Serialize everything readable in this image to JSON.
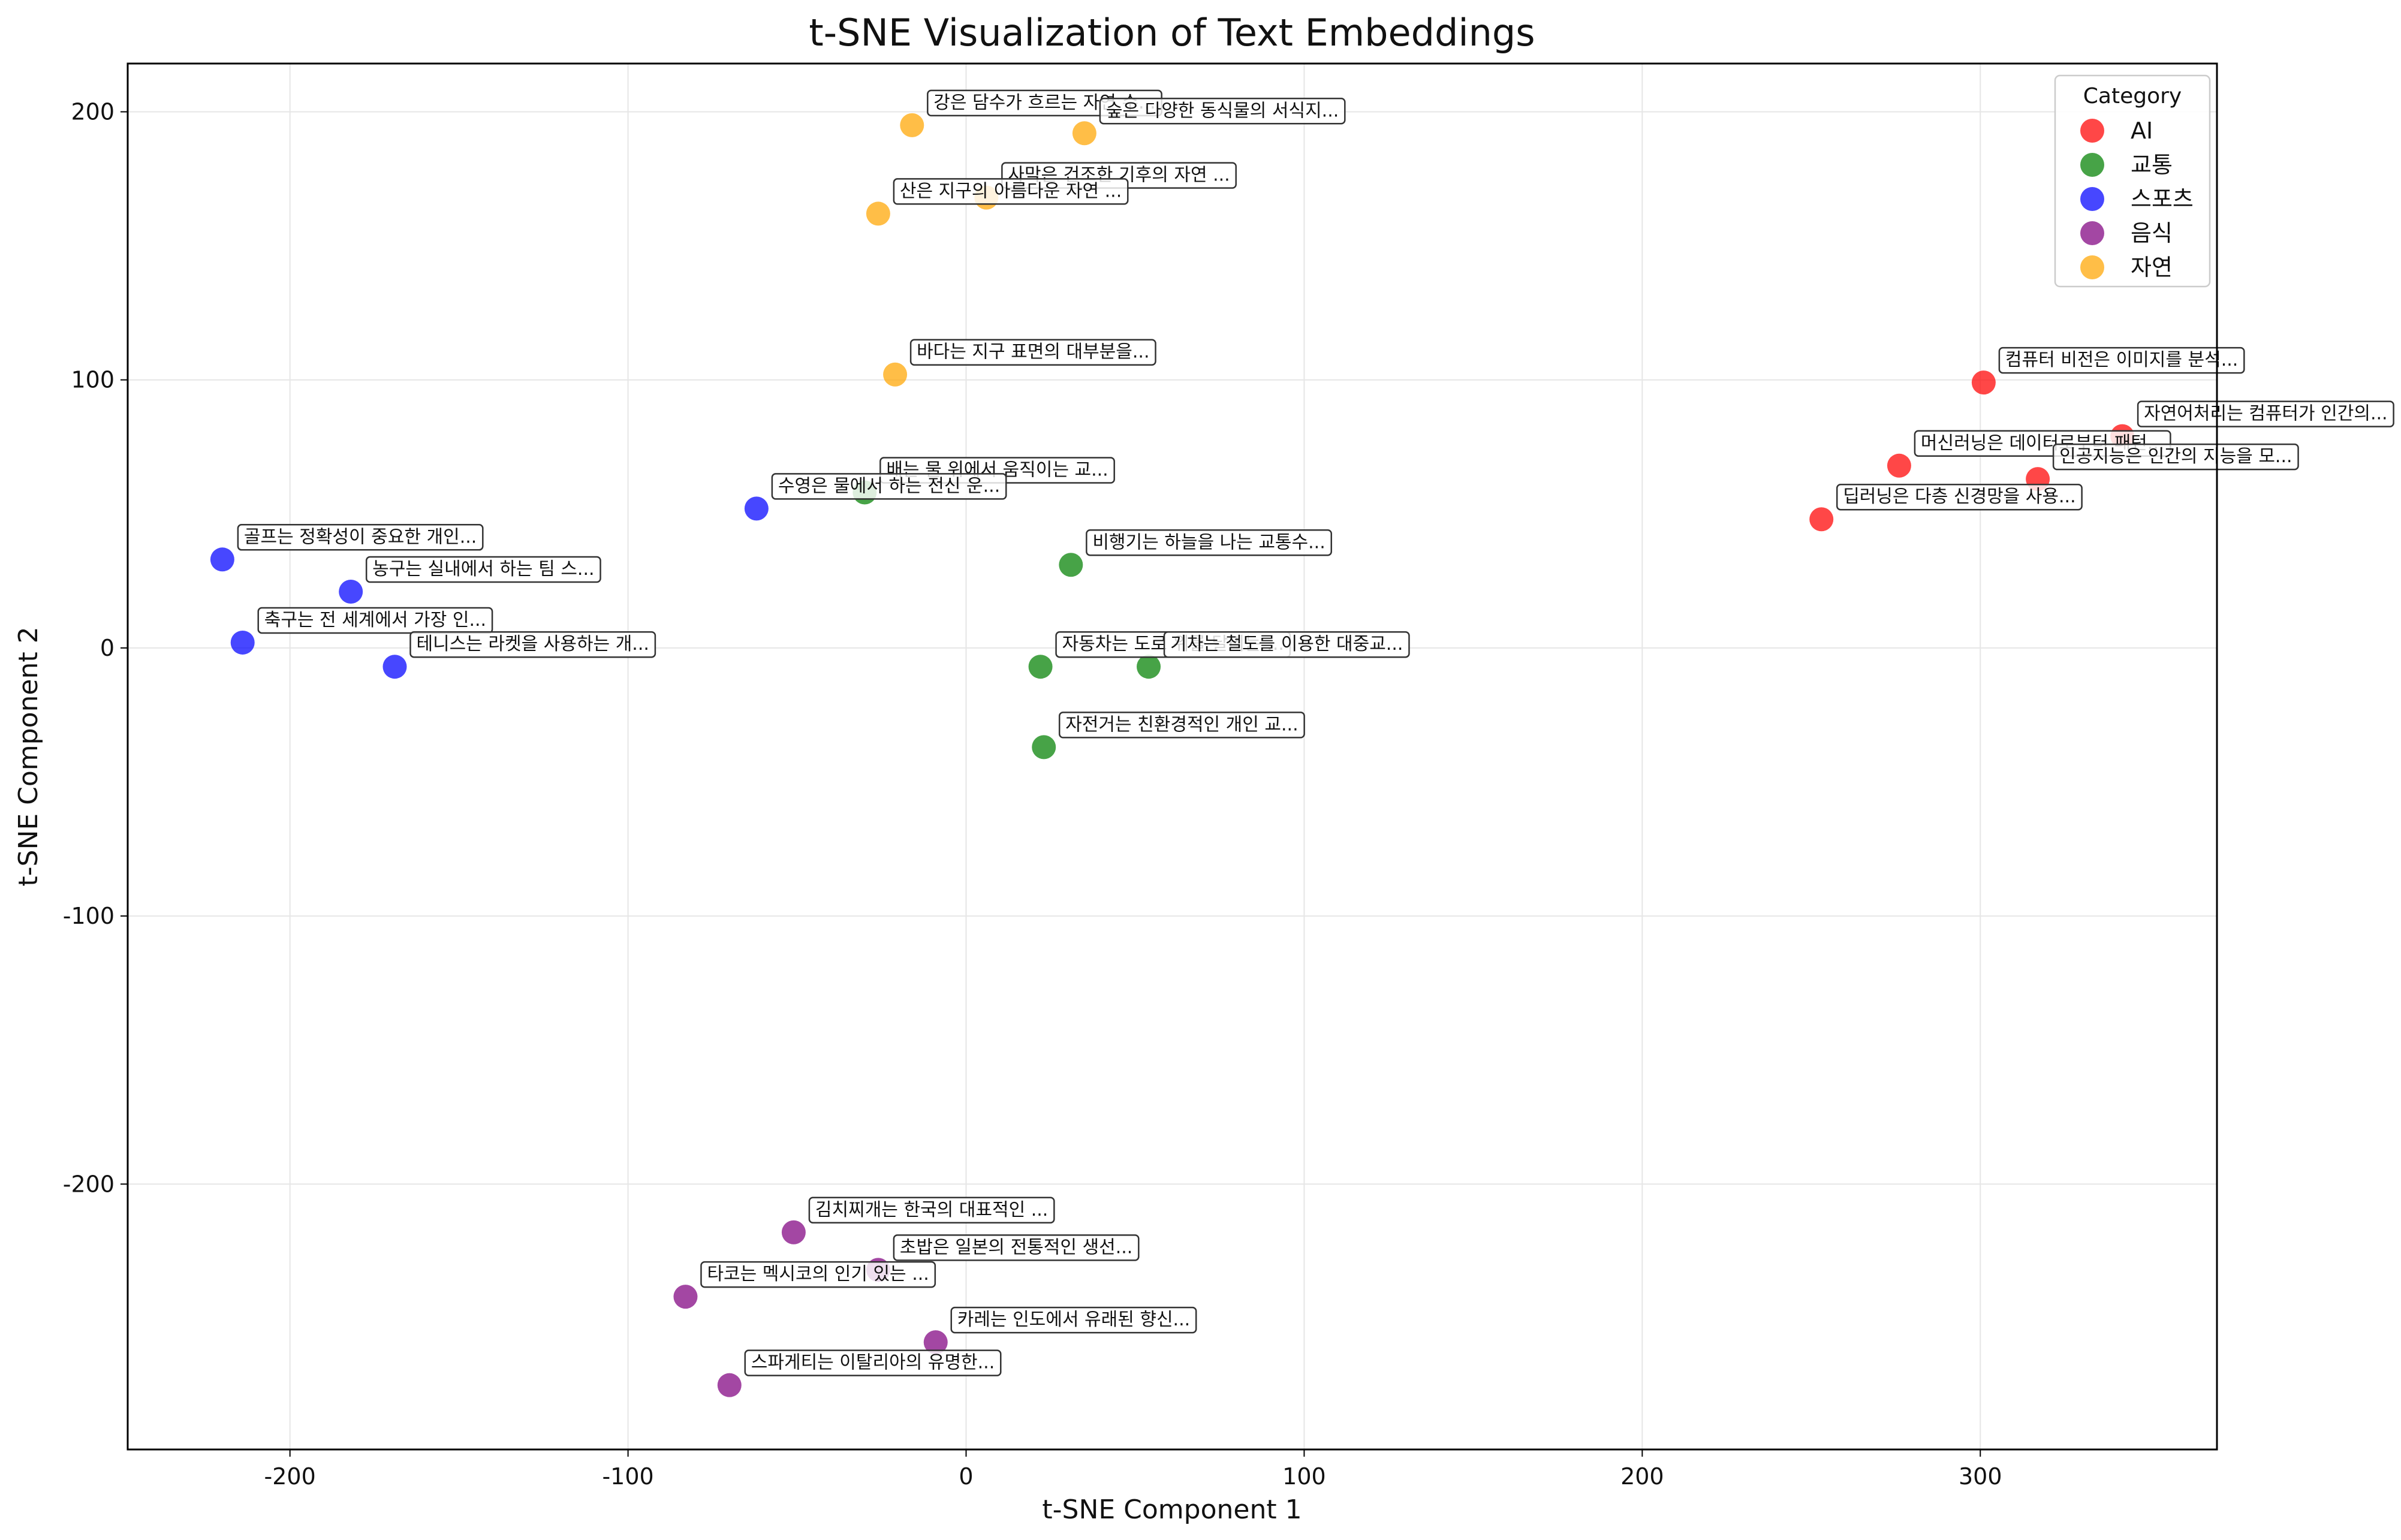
{
  "chart_data": {
    "type": "scatter",
    "title": "t-SNE Visualization of Text Embeddings",
    "xlabel": "t-SNE Component 1",
    "ylabel": "t-SNE Component 2",
    "xlim": [
      -248,
      370
    ],
    "ylim": [
      -299,
      218
    ],
    "xticks": [
      -200,
      -100,
      0,
      100,
      200,
      300
    ],
    "yticks": [
      -200,
      -100,
      0,
      100,
      200
    ],
    "grid": true,
    "legend": {
      "title": "Category",
      "position": "top-right"
    },
    "series": [
      {
        "name": "AI",
        "color": "#ff0000",
        "points": [
          {
            "x": 301,
            "y": 99,
            "label": "컴퓨터 비전은 이미지를 분석..."
          },
          {
            "x": 342,
            "y": 79,
            "label": "자연어처리는 컴퓨터가 인간의..."
          },
          {
            "x": 276,
            "y": 68,
            "label": "머신러닝은 데이터로부터 패턴..."
          },
          {
            "x": 317,
            "y": 63,
            "label": "인공지능은 인간의 지능을 모..."
          },
          {
            "x": 253,
            "y": 48,
            "label": "딥러닝은 다층 신경망을 사용..."
          }
        ]
      },
      {
        "name": "교통",
        "color": "#008000",
        "points": [
          {
            "x": -30,
            "y": 58,
            "label": "배는 물 위에서 움직이는 교..."
          },
          {
            "x": 31,
            "y": 31,
            "label": "비행기는 하늘을 나는 교통수..."
          },
          {
            "x": 22,
            "y": -7,
            "label": "자동차는 도로 위를 달리는 ..."
          },
          {
            "x": 54,
            "y": -7,
            "label": "기차는 철도를 이용한 대중교..."
          },
          {
            "x": 23,
            "y": -37,
            "label": "자전거는 친환경적인 개인 교..."
          }
        ]
      },
      {
        "name": "스포츠",
        "color": "#0000ff",
        "points": [
          {
            "x": -62,
            "y": 52,
            "label": "수영은 물에서 하는 전신 운..."
          },
          {
            "x": -220,
            "y": 33,
            "label": "골프는 정확성이 중요한 개인..."
          },
          {
            "x": -182,
            "y": 21,
            "label": "농구는 실내에서 하는 팀 스..."
          },
          {
            "x": -214,
            "y": 2,
            "label": "축구는 전 세계에서 가장 인..."
          },
          {
            "x": -169,
            "y": -7,
            "label": "테니스는 라켓을 사용하는 개..."
          }
        ]
      },
      {
        "name": "음식",
        "color": "#800080",
        "points": [
          {
            "x": -51,
            "y": -218,
            "label": "김치찌개는 한국의 대표적인 ..."
          },
          {
            "x": -26,
            "y": -232,
            "label": "초밥은 일본의 전통적인 생선..."
          },
          {
            "x": -83,
            "y": -242,
            "label": "타코는 멕시코의 인기 있는 ..."
          },
          {
            "x": -9,
            "y": -259,
            "label": "카레는 인도에서 유래된 향신..."
          },
          {
            "x": -70,
            "y": -275,
            "label": "스파게티는 이탈리아의 유명한..."
          }
        ]
      },
      {
        "name": "자연",
        "color": "#ffa500",
        "points": [
          {
            "x": -16,
            "y": 195,
            "label": "강은 담수가 흐르는 자연 수..."
          },
          {
            "x": 35,
            "y": 192,
            "label": "숲은 다양한 동식물의 서식지..."
          },
          {
            "x": 6,
            "y": 168,
            "label": "사막은 건조한 기후의 자연 ..."
          },
          {
            "x": -26,
            "y": 162,
            "label": "산은 지구의 아름다운 자연 ..."
          },
          {
            "x": -21,
            "y": 102,
            "label": "바다는 지구 표면의 대부분을..."
          }
        ]
      }
    ]
  }
}
